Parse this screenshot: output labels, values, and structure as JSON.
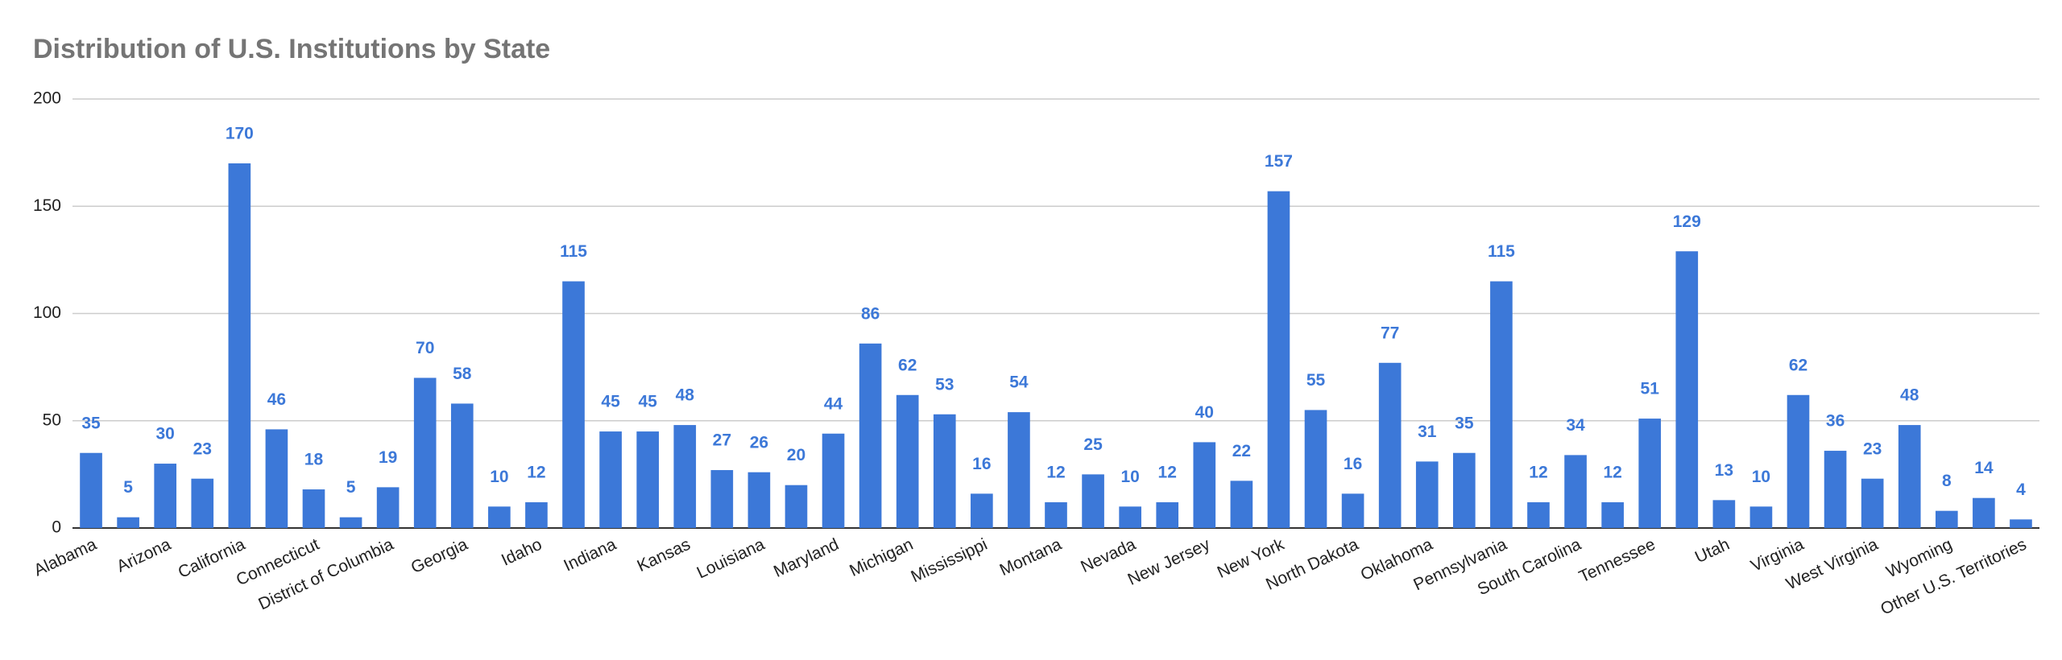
{
  "chart_data": {
    "type": "bar",
    "title": "Distribution of U.S. Institutions by State",
    "categories": [
      "Alabama",
      null,
      "Arizona",
      null,
      "California",
      null,
      "Connecticut",
      null,
      "District of Columbia",
      null,
      "Georgia",
      null,
      "Idaho",
      null,
      "Indiana",
      null,
      "Kansas",
      null,
      "Louisiana",
      null,
      "Maryland",
      null,
      "Michigan",
      null,
      "Mississippi",
      null,
      "Montana",
      null,
      "Nevada",
      null,
      "New Jersey",
      null,
      "New York",
      null,
      "North Dakota",
      null,
      "Oklahoma",
      null,
      "Pennsylvania",
      null,
      "South Carolina",
      null,
      "Tennessee",
      null,
      "Utah",
      null,
      "Virginia",
      null,
      "West Virginia",
      null,
      "Wyoming",
      null,
      "Other U.S. Territories"
    ],
    "values": [
      35,
      5,
      30,
      23,
      170,
      46,
      18,
      5,
      19,
      70,
      58,
      10,
      12,
      115,
      45,
      45,
      48,
      27,
      26,
      20,
      44,
      86,
      62,
      53,
      16,
      54,
      12,
      25,
      10,
      12,
      40,
      22,
      157,
      55,
      16,
      77,
      31,
      35,
      115,
      12,
      34,
      12,
      51,
      129,
      13,
      10,
      62,
      36,
      23,
      48,
      8,
      14,
      4
    ],
    "color": "#3c78d8",
    "ylim": [
      0,
      200
    ],
    "yticks": [
      0,
      50,
      100,
      150,
      200
    ],
    "grid": true
  }
}
